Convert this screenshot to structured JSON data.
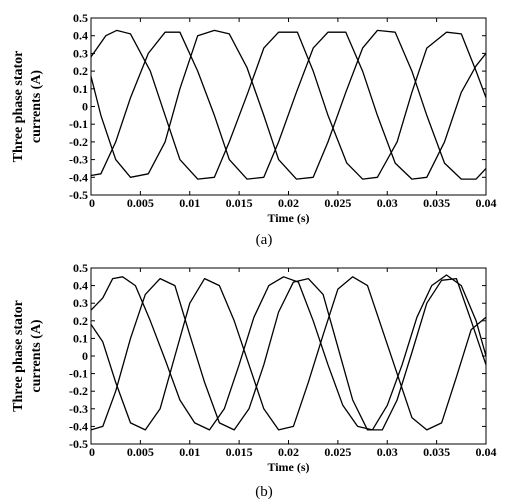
{
  "panels": [
    {
      "caption": "(a)",
      "chart_data": {
        "type": "line",
        "xlabel": "Time (s)",
        "ylabel_lines": [
          "Three phase stator",
          "currents (A)"
        ],
        "xlim": [
          0,
          0.04
        ],
        "ylim": [
          -0.5,
          0.5
        ],
        "xticks": [
          0,
          0.005,
          0.01,
          0.015,
          0.02,
          0.025,
          0.03,
          0.035,
          0.04
        ],
        "xtick_labels": [
          "0",
          "0.005",
          "0.01",
          "0.015",
          "0.02",
          "0.025",
          "0.03",
          "0.035",
          "0.04"
        ],
        "yticks": [
          0.5,
          0.4,
          0.3,
          0.2,
          0.1,
          0,
          -0.1,
          -0.2,
          -0.3,
          -0.4,
          -0.5
        ],
        "ytick_labels": [
          "0.5",
          "0.4",
          "0.3",
          "0.2",
          "0.1",
          "0",
          "-0.1",
          "-0.2",
          "-0.3",
          "-0.4",
          "-0.5"
        ],
        "grid": false,
        "series": [
          {
            "x": [
              0,
              0.0015,
              0.0026,
              0.004,
              0.006,
              0.0075,
              0.009,
              0.0108,
              0.0125,
              0.014,
              0.0159,
              0.0175,
              0.019,
              0.0209,
              0.0225,
              0.024,
              0.0259,
              0.0275,
              0.029,
              0.031,
              0.0325,
              0.034,
              0.036,
              0.0375,
              0.039,
              0.04
            ],
            "y": [
              0.28,
              0.4,
              0.43,
              0.41,
              0.2,
              -0.05,
              -0.3,
              -0.41,
              -0.4,
              -0.2,
              0.08,
              0.33,
              0.42,
              0.42,
              0.2,
              -0.05,
              -0.32,
              -0.41,
              -0.4,
              -0.2,
              0.08,
              0.33,
              0.42,
              0.41,
              0.2,
              0.05
            ]
          },
          {
            "x": [
              0,
              0.001,
              0.0025,
              0.004,
              0.0058,
              0.0075,
              0.009,
              0.0108,
              0.0125,
              0.014,
              0.0158,
              0.0175,
              0.019,
              0.0208,
              0.0225,
              0.024,
              0.0258,
              0.0275,
              0.029,
              0.0308,
              0.0325,
              0.034,
              0.0358,
              0.0375,
              0.039,
              0.04
            ],
            "y": [
              0.17,
              -0.05,
              -0.3,
              -0.4,
              -0.38,
              -0.2,
              0.1,
              0.4,
              0.43,
              0.41,
              0.22,
              -0.05,
              -0.3,
              -0.41,
              -0.4,
              -0.2,
              0.08,
              0.33,
              0.43,
              0.42,
              0.2,
              -0.05,
              -0.32,
              -0.41,
              -0.41,
              -0.35
            ]
          },
          {
            "x": [
              0,
              0.001,
              0.0025,
              0.004,
              0.0058,
              0.0075,
              0.009,
              0.0108,
              0.0125,
              0.014,
              0.0158,
              0.0175,
              0.019,
              0.0208,
              0.0225,
              0.024,
              0.0258,
              0.0275,
              0.029,
              0.0308,
              0.0325,
              0.034,
              0.0358,
              0.0375,
              0.039,
              0.04
            ],
            "y": [
              -0.39,
              -0.38,
              -0.2,
              0.05,
              0.3,
              0.42,
              0.42,
              0.2,
              -0.05,
              -0.3,
              -0.41,
              -0.4,
              -0.2,
              0.08,
              0.33,
              0.42,
              0.42,
              0.2,
              -0.05,
              -0.32,
              -0.41,
              -0.4,
              -0.2,
              0.08,
              0.23,
              0.3
            ]
          }
        ]
      }
    },
    {
      "caption": "(b)",
      "chart_data": {
        "type": "line",
        "xlabel": "Time (s)",
        "ylabel_lines": [
          "Three phase stator",
          "currents (A)"
        ],
        "xlim": [
          0,
          0.04
        ],
        "ylim": [
          -0.5,
          0.5
        ],
        "xticks": [
          0,
          0.005,
          0.01,
          0.015,
          0.02,
          0.025,
          0.03,
          0.035,
          0.04
        ],
        "xtick_labels": [
          "0",
          "0.005",
          "0.01",
          "0.015",
          "0.02",
          "0.025",
          "0.03",
          "0.035",
          "0.04"
        ],
        "yticks": [
          0.5,
          0.4,
          0.3,
          0.2,
          0.1,
          0,
          -0.1,
          -0.2,
          -0.3,
          -0.4,
          -0.5
        ],
        "ytick_labels": [
          "0.5",
          "0.4",
          "0.3",
          "0.2",
          "0.1",
          "0",
          "-0.1",
          "-0.2",
          "-0.3",
          "-0.4",
          "-0.5"
        ],
        "grid": false,
        "series": [
          {
            "x": [
              0,
              0.0012,
              0.0022,
              0.0032,
              0.0045,
              0.006,
              0.0075,
              0.009,
              0.0105,
              0.012,
              0.0135,
              0.015,
              0.0165,
              0.018,
              0.0195,
              0.021,
              0.0225,
              0.024,
              0.0255,
              0.027,
              0.0285,
              0.03,
              0.0315,
              0.033,
              0.0345,
              0.036,
              0.0375,
              0.039,
              0.04
            ],
            "y": [
              0.26,
              0.33,
              0.44,
              0.45,
              0.4,
              0.2,
              -0.02,
              -0.25,
              -0.38,
              -0.42,
              -0.3,
              -0.05,
              0.22,
              0.4,
              0.45,
              0.42,
              0.2,
              -0.05,
              -0.28,
              -0.4,
              -0.42,
              -0.28,
              -0.05,
              0.22,
              0.4,
              0.46,
              0.4,
              0.2,
              0.0
            ]
          },
          {
            "x": [
              0,
              0.0012,
              0.0025,
              0.004,
              0.0055,
              0.007,
              0.0085,
              0.01,
              0.0115,
              0.013,
              0.0145,
              0.016,
              0.0175,
              0.019,
              0.0205,
              0.022,
              0.0235,
              0.025,
              0.0265,
              0.028,
              0.0295,
              0.031,
              0.0325,
              0.034,
              0.0355,
              0.037,
              0.0385,
              0.04
            ],
            "y": [
              0.18,
              0.08,
              -0.15,
              -0.38,
              -0.42,
              -0.3,
              0.0,
              0.3,
              0.44,
              0.4,
              0.2,
              -0.05,
              -0.3,
              -0.42,
              -0.4,
              -0.15,
              0.12,
              0.38,
              0.45,
              0.4,
              0.15,
              -0.1,
              -0.35,
              -0.42,
              -0.38,
              -0.12,
              0.15,
              0.22
            ]
          },
          {
            "x": [
              0,
              0.0012,
              0.0025,
              0.004,
              0.0055,
              0.007,
              0.0085,
              0.01,
              0.0115,
              0.013,
              0.0145,
              0.016,
              0.0175,
              0.019,
              0.0205,
              0.022,
              0.0235,
              0.025,
              0.0265,
              0.028,
              0.0295,
              0.031,
              0.0325,
              0.034,
              0.0355,
              0.037,
              0.0385,
              0.04
            ],
            "y": [
              -0.42,
              -0.4,
              -0.2,
              0.1,
              0.35,
              0.44,
              0.4,
              0.12,
              -0.15,
              -0.38,
              -0.42,
              -0.3,
              -0.05,
              0.25,
              0.42,
              0.44,
              0.35,
              0.05,
              -0.25,
              -0.42,
              -0.42,
              -0.25,
              0.02,
              0.3,
              0.43,
              0.44,
              0.2,
              -0.05
            ]
          }
        ]
      }
    }
  ]
}
